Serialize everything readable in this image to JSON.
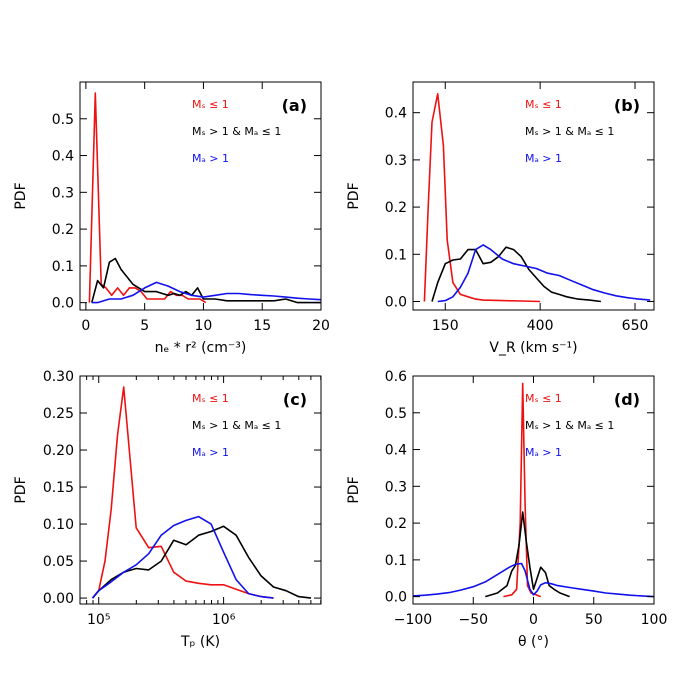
{
  "colors": {
    "red": "#ee1111",
    "black": "#000000",
    "blue": "#1111ee"
  },
  "legend": [
    {
      "key": "red",
      "text": "Mₛ ≤ 1"
    },
    {
      "key": "black",
      "text": "Mₛ  > 1 & Mₐ ≤ 1"
    },
    {
      "key": "blue",
      "text": "Mₐ  > 1"
    }
  ],
  "chart_data": [
    {
      "type": "line",
      "label": "(a)",
      "xlabel": "nₑ * r² (cm⁻³)",
      "ylabel": "PDF",
      "xscale": "linear",
      "xlim": [
        -0.5,
        20
      ],
      "ylim": [
        -0.02,
        0.6
      ],
      "xticks": [
        0,
        5,
        10,
        15,
        20
      ],
      "xticklabels": [
        "0",
        "5",
        "10",
        "15",
        "20"
      ],
      "yticks": [
        0,
        0.1,
        0.2,
        0.3,
        0.4,
        0.5
      ],
      "yticklabels": [
        "0.0",
        "0.1",
        "0.2",
        "0.3",
        "0.4",
        "0.5"
      ],
      "series": [
        {
          "name": "red",
          "x": [
            0.3,
            0.8,
            1.3,
            1.7,
            2.2,
            2.7,
            3.2,
            3.7,
            4.2,
            4.7,
            5.2,
            5.7,
            6.2,
            6.7,
            7.2,
            7.7,
            8.2,
            8.7,
            9.2,
            9.7,
            10.2
          ],
          "y": [
            0,
            0.57,
            0.05,
            0.04,
            0.02,
            0.04,
            0.02,
            0.04,
            0.04,
            0.03,
            0.01,
            0.01,
            0.01,
            0.01,
            0.03,
            0.02,
            0.02,
            0.01,
            0.01,
            0.01,
            0
          ]
        },
        {
          "name": "black",
          "x": [
            0.5,
            1,
            1.5,
            2,
            2.5,
            3,
            3.5,
            4,
            4.5,
            5,
            5.5,
            6,
            6.5,
            7,
            7.5,
            8,
            8.5,
            9,
            9.5,
            10,
            11,
            12,
            13,
            14,
            15,
            16,
            17,
            18,
            19,
            20
          ],
          "y": [
            0,
            0.06,
            0.04,
            0.11,
            0.12,
            0.09,
            0.07,
            0.05,
            0.04,
            0.03,
            0.03,
            0.03,
            0.025,
            0.02,
            0.025,
            0.02,
            0.03,
            0.02,
            0.04,
            0.01,
            0.01,
            0.005,
            0.005,
            0.005,
            0.005,
            0.005,
            0.01,
            0,
            0,
            0
          ]
        },
        {
          "name": "blue",
          "x": [
            0.5,
            1,
            2,
            3,
            4,
            5,
            6,
            7,
            8,
            9,
            10,
            11,
            12,
            13,
            14,
            15,
            16,
            17,
            18,
            19,
            20
          ],
          "y": [
            0,
            0,
            0.01,
            0.01,
            0.02,
            0.04,
            0.055,
            0.045,
            0.03,
            0.02,
            0.015,
            0.02,
            0.025,
            0.025,
            0.022,
            0.02,
            0.018,
            0.015,
            0.012,
            0.01,
            0.008
          ]
        }
      ]
    },
    {
      "type": "line",
      "label": "(b)",
      "xlabel": "V_R (km s⁻¹)",
      "ylabel": "PDF",
      "xscale": "linear",
      "xlim": [
        65,
        700
      ],
      "ylim": [
        -0.018,
        0.465
      ],
      "xticks": [
        150,
        400,
        650
      ],
      "xticklabels": [
        "150",
        "400",
        "650"
      ],
      "yticks": [
        0,
        0.1,
        0.2,
        0.3,
        0.4
      ],
      "yticklabels": [
        "0.0",
        "0.1",
        "0.2",
        "0.3",
        "0.4"
      ],
      "series": [
        {
          "name": "red",
          "x": [
            95,
            105,
            115,
            130,
            145,
            155,
            170,
            190,
            210,
            230,
            250,
            300,
            350,
            400
          ],
          "y": [
            0,
            0.2,
            0.38,
            0.44,
            0.33,
            0.13,
            0.04,
            0.015,
            0.01,
            0.005,
            0.003,
            0.002,
            0.001,
            0
          ]
        },
        {
          "name": "black",
          "x": [
            115,
            130,
            150,
            170,
            190,
            210,
            230,
            250,
            270,
            290,
            310,
            330,
            350,
            370,
            390,
            410,
            430,
            450,
            470,
            500,
            530,
            560
          ],
          "y": [
            0,
            0.04,
            0.08,
            0.088,
            0.09,
            0.11,
            0.11,
            0.08,
            0.083,
            0.095,
            0.115,
            0.11,
            0.095,
            0.068,
            0.05,
            0.032,
            0.02,
            0.015,
            0.01,
            0.005,
            0.003,
            0
          ]
        },
        {
          "name": "blue",
          "x": [
            130,
            150,
            170,
            190,
            210,
            230,
            250,
            270,
            300,
            330,
            360,
            390,
            420,
            450,
            480,
            510,
            540,
            570,
            600,
            630,
            660,
            690
          ],
          "y": [
            0,
            0.002,
            0.01,
            0.03,
            0.06,
            0.11,
            0.12,
            0.11,
            0.09,
            0.08,
            0.075,
            0.07,
            0.06,
            0.055,
            0.045,
            0.035,
            0.025,
            0.018,
            0.012,
            0.008,
            0.005,
            0.003
          ]
        }
      ]
    },
    {
      "type": "line",
      "label": "(c)",
      "xlabel": "Tₚ (K)",
      "ylabel": "PDF",
      "xscale": "log",
      "xlim": [
        4.85,
        6.78
      ],
      "ylim": [
        -0.008,
        0.3
      ],
      "xticks": [
        5,
        6
      ],
      "xticklabels": [
        "10⁵",
        "10⁶"
      ],
      "yticks": [
        0,
        0.05,
        0.1,
        0.15,
        0.2,
        0.25,
        0.3
      ],
      "yticklabels": [
        "0.00",
        "0.05",
        "0.10",
        "0.15",
        "0.20",
        "0.25",
        "0.30"
      ],
      "series": [
        {
          "name": "red",
          "x": [
            4.95,
            5.0,
            5.05,
            5.1,
            5.15,
            5.2,
            5.3,
            5.4,
            5.5,
            5.6,
            5.7,
            5.8,
            5.9,
            6.0,
            6.1,
            6.2,
            6.3,
            6.4
          ],
          "y": [
            0,
            0.01,
            0.05,
            0.12,
            0.22,
            0.285,
            0.095,
            0.068,
            0.07,
            0.035,
            0.023,
            0.02,
            0.018,
            0.018,
            0.012,
            0.006,
            0.002,
            0
          ]
        },
        {
          "name": "black",
          "x": [
            4.95,
            5.0,
            5.1,
            5.2,
            5.3,
            5.4,
            5.5,
            5.6,
            5.7,
            5.8,
            5.9,
            6.0,
            6.1,
            6.2,
            6.3,
            6.4,
            6.5,
            6.6,
            6.7
          ],
          "y": [
            0,
            0.01,
            0.025,
            0.035,
            0.04,
            0.038,
            0.05,
            0.078,
            0.072,
            0.085,
            0.09,
            0.097,
            0.085,
            0.055,
            0.03,
            0.015,
            0.01,
            0.002,
            0
          ]
        },
        {
          "name": "blue",
          "x": [
            4.95,
            5.0,
            5.1,
            5.2,
            5.3,
            5.4,
            5.5,
            5.6,
            5.7,
            5.8,
            5.9,
            6.0,
            6.1,
            6.2,
            6.3,
            6.4
          ],
          "y": [
            0,
            0.01,
            0.022,
            0.035,
            0.045,
            0.06,
            0.085,
            0.098,
            0.105,
            0.11,
            0.1,
            0.062,
            0.025,
            0.006,
            0.002,
            0
          ]
        }
      ]
    },
    {
      "type": "line",
      "label": "(d)",
      "xlabel": "θ (°)",
      "ylabel": "PDF",
      "xscale": "linear",
      "xlim": [
        -100,
        100
      ],
      "ylim": [
        -0.02,
        0.6
      ],
      "xticks": [
        -100,
        -50,
        0,
        50,
        100
      ],
      "xticklabels": [
        "−100",
        "−50",
        "0",
        "50",
        "100"
      ],
      "yticks": [
        0,
        0.1,
        0.2,
        0.3,
        0.4,
        0.5,
        0.6
      ],
      "yticklabels": [
        "0.0",
        "0.1",
        "0.2",
        "0.3",
        "0.4",
        "0.5",
        "0.6"
      ],
      "series": [
        {
          "name": "red",
          "x": [
            -25,
            -18,
            -14,
            -11,
            -9,
            -7,
            -5,
            -2,
            2,
            6
          ],
          "y": [
            0,
            0.005,
            0.02,
            0.2,
            0.58,
            0.25,
            0.03,
            0.01,
            0.005,
            0
          ]
        },
        {
          "name": "black",
          "x": [
            -40,
            -30,
            -22,
            -18,
            -15,
            -12,
            -9,
            -6,
            -3,
            0,
            3,
            6,
            10,
            13,
            17,
            22,
            30
          ],
          "y": [
            0,
            0.01,
            0.03,
            0.07,
            0.085,
            0.14,
            0.23,
            0.15,
            0.08,
            0.02,
            0.05,
            0.08,
            0.065,
            0.03,
            0.02,
            0.01,
            0
          ]
        },
        {
          "name": "blue",
          "x": [
            -100,
            -90,
            -80,
            -70,
            -60,
            -50,
            -40,
            -30,
            -20,
            -15,
            -10,
            -7,
            -3,
            0,
            3,
            6,
            10,
            15,
            20,
            30,
            40,
            50,
            60,
            70,
            80,
            90,
            100
          ],
          "y": [
            0.002,
            0.004,
            0.007,
            0.011,
            0.018,
            0.027,
            0.04,
            0.06,
            0.08,
            0.088,
            0.09,
            0.07,
            0.02,
            0.005,
            0.015,
            0.032,
            0.038,
            0.035,
            0.03,
            0.025,
            0.02,
            0.015,
            0.01,
            0.007,
            0.004,
            0.002,
            0
          ]
        }
      ]
    }
  ]
}
